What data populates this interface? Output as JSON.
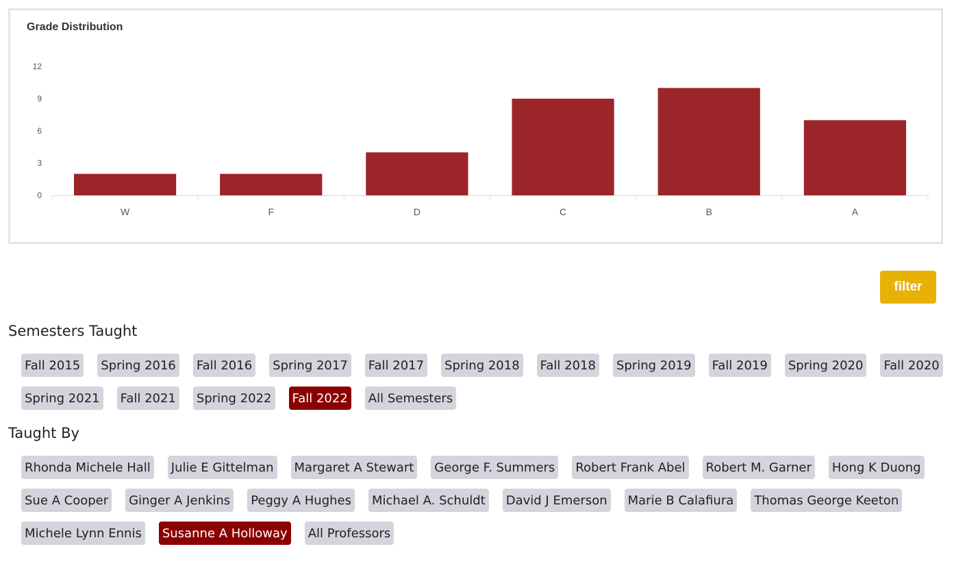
{
  "chart_data": {
    "type": "bar",
    "title": "Grade Distribution",
    "categories": [
      "W",
      "F",
      "D",
      "C",
      "B",
      "A"
    ],
    "values": [
      2,
      2,
      4,
      9,
      10,
      7
    ],
    "yticks": [
      0,
      3,
      6,
      9,
      12
    ],
    "ylim": [
      0,
      12
    ],
    "xlabel": "",
    "ylabel": "",
    "bar_color": "#9b2528",
    "grid": false
  },
  "filter_button": {
    "label": "filter",
    "color": "#e8b106"
  },
  "semesters": {
    "heading": "Semesters Taught",
    "rows": [
      [
        "Fall 2015",
        "Spring 2016",
        "Fall 2016",
        "Spring 2017",
        "Fall 2017",
        "Spring 2018",
        "Fall 2018",
        "Spring 2019",
        "Fall 2019",
        "Spring 2020",
        "Fall 2020"
      ],
      [
        "Spring 2021",
        "Fall 2021",
        "Spring 2022",
        "Fall 2022",
        "All Semesters"
      ]
    ],
    "selected": "Fall 2022"
  },
  "professors": {
    "heading": "Taught By",
    "rows": [
      [
        "Rhonda Michele Hall",
        "Julie E Gittelman",
        "Margaret A Stewart",
        "George F. Summers",
        "Robert Frank Abel",
        "Robert M. Garner",
        "Hong K Duong"
      ],
      [
        "Sue A Cooper",
        "Ginger A Jenkins",
        "Peggy A Hughes",
        "Michael A. Schuldt",
        "David J Emerson",
        "Marie B Calafiura",
        "Thomas George Keeton"
      ],
      [
        "Michele Lynn Ennis",
        "Susanne A Holloway",
        "All Professors"
      ]
    ],
    "selected": "Susanne A Holloway"
  },
  "colors": {
    "tag_bg": "#d3d4dc",
    "tag_selected_bg": "#8b0000",
    "panel_border": "#e3e4e8"
  }
}
